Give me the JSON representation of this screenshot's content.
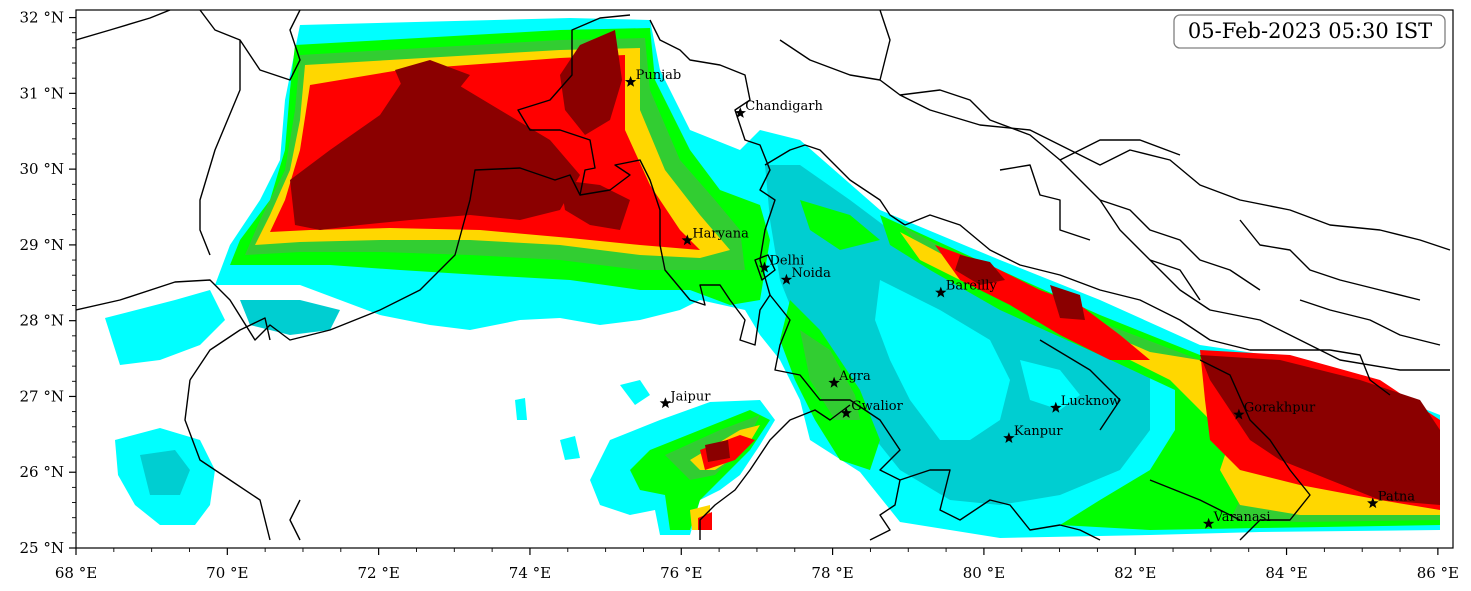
{
  "map": {
    "timestamp": "05-Feb-2023 05:30 IST",
    "extent": {
      "lon": [
        68,
        86.2
      ],
      "lat": [
        25,
        32.1
      ]
    },
    "colors": {
      "cyan": "#00ffff",
      "dark_cyan": "#00ced1",
      "green": "#00ff00",
      "med_green": "#32cd32",
      "gold": "#ffd700",
      "red": "#ff0000",
      "dark_red": "#8b0000"
    },
    "x_ticks": [
      {
        "lon": 68,
        "label": "68 °E"
      },
      {
        "lon": 70,
        "label": "70 °E"
      },
      {
        "lon": 72,
        "label": "72 °E"
      },
      {
        "lon": 74,
        "label": "74 °E"
      },
      {
        "lon": 76,
        "label": "76 °E"
      },
      {
        "lon": 78,
        "label": "78 °E"
      },
      {
        "lon": 80,
        "label": "80 °E"
      },
      {
        "lon": 82,
        "label": "82 °E"
      },
      {
        "lon": 84,
        "label": "84 °E"
      },
      {
        "lon": 86,
        "label": "86 °E"
      }
    ],
    "y_ticks": [
      {
        "lat": 25,
        "label": "25 °N"
      },
      {
        "lat": 26,
        "label": "26 °N"
      },
      {
        "lat": 27,
        "label": "27 °N"
      },
      {
        "lat": 28,
        "label": "28 °N"
      },
      {
        "lat": 29,
        "label": "29 °N"
      },
      {
        "lat": 30,
        "label": "30 °N"
      },
      {
        "lat": 31,
        "label": "31 °N"
      },
      {
        "lat": 32,
        "label": "32 °N"
      }
    ],
    "cities": [
      {
        "name": "Punjab",
        "lon": 75.33,
        "lat": 31.15
      },
      {
        "name": "Chandigarh",
        "lon": 76.78,
        "lat": 30.74
      },
      {
        "name": "Haryana",
        "lon": 76.08,
        "lat": 29.06
      },
      {
        "name": "Delhi",
        "lon": 77.1,
        "lat": 28.7
      },
      {
        "name": "Noida",
        "lon": 77.39,
        "lat": 28.54
      },
      {
        "name": "Bareilly",
        "lon": 79.43,
        "lat": 28.37
      },
      {
        "name": "Agra",
        "lon": 78.02,
        "lat": 27.18
      },
      {
        "name": "Jaipur",
        "lon": 75.79,
        "lat": 26.91
      },
      {
        "name": "Gwalior",
        "lon": 78.18,
        "lat": 26.78
      },
      {
        "name": "Lucknow",
        "lon": 80.95,
        "lat": 26.85
      },
      {
        "name": "Kanpur",
        "lon": 80.33,
        "lat": 26.45
      },
      {
        "name": "Gorakhpur",
        "lon": 83.37,
        "lat": 26.76
      },
      {
        "name": "Varanasi",
        "lon": 82.97,
        "lat": 25.32
      },
      {
        "name": "Patna",
        "lon": 85.14,
        "lat": 25.59
      }
    ]
  }
}
